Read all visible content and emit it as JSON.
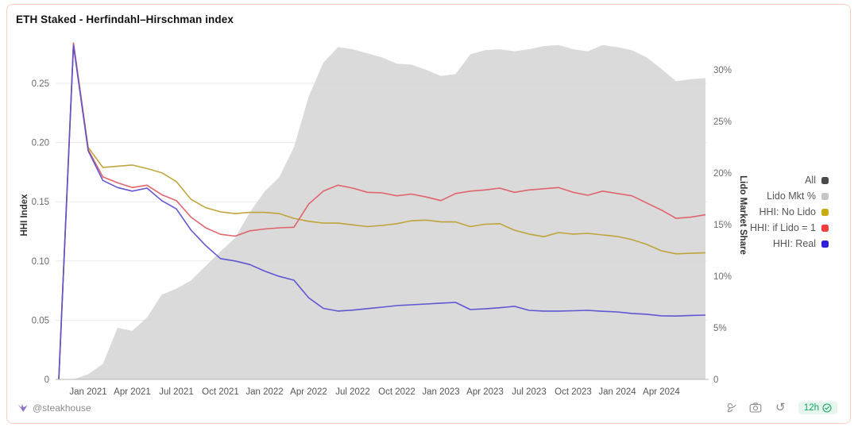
{
  "card": {
    "title": "ETH Staked - Herfindahl–Hirschman index"
  },
  "footer": {
    "credit": "@steakhouse",
    "refresh_glyph": "↺",
    "badge": {
      "text": "12h",
      "color": "#17a563",
      "bg": "#e6f6ee"
    }
  },
  "legend": [
    {
      "label": "All",
      "color": "#4a4a4a"
    },
    {
      "label": "Lido Mkt %",
      "color": "#c6c6c6"
    },
    {
      "label": "HHI: No Lido",
      "color": "#c9ab13"
    },
    {
      "label": "HHI: if Lido = 1",
      "color": "#f23d3d"
    },
    {
      "label": "HHI: Real",
      "color": "#2c20dd"
    }
  ],
  "chart_data": {
    "type": "area+line",
    "title": "ETH Staked - Herfindahl–Hirschman index",
    "x_months": [
      "2020-11",
      "2020-12",
      "2021-01",
      "2021-02",
      "2021-03",
      "2021-04",
      "2021-05",
      "2021-06",
      "2021-07",
      "2021-08",
      "2021-09",
      "2021-10",
      "2021-11",
      "2021-12",
      "2022-01",
      "2022-02",
      "2022-03",
      "2022-04",
      "2022-05",
      "2022-06",
      "2022-07",
      "2022-08",
      "2022-09",
      "2022-10",
      "2022-11",
      "2022-12",
      "2023-01",
      "2023-02",
      "2023-03",
      "2023-04",
      "2023-05",
      "2023-06",
      "2023-07",
      "2023-08",
      "2023-09",
      "2023-10",
      "2023-11",
      "2023-12",
      "2024-01",
      "2024-02",
      "2024-03",
      "2024-04",
      "2024-05",
      "2024-06",
      "2024-07"
    ],
    "x_ticks": [
      {
        "label": "Jan 2021",
        "i": 2
      },
      {
        "label": "Apr 2021",
        "i": 5
      },
      {
        "label": "Jul 2021",
        "i": 8
      },
      {
        "label": "Oct 2021",
        "i": 11
      },
      {
        "label": "Jan 2022",
        "i": 14
      },
      {
        "label": "Apr 2022",
        "i": 17
      },
      {
        "label": "Jul 2022",
        "i": 20
      },
      {
        "label": "Oct 2022",
        "i": 23
      },
      {
        "label": "Jan 2023",
        "i": 26
      },
      {
        "label": "Apr 2023",
        "i": 29
      },
      {
        "label": "Jul 2023",
        "i": 32
      },
      {
        "label": "Oct 2023",
        "i": 35
      },
      {
        "label": "Jan 2024",
        "i": 38
      },
      {
        "label": "Apr 2024",
        "i": 41
      }
    ],
    "left_axis": {
      "label": "HHI Index",
      "ticks": [
        "0",
        "0.05",
        "0.10",
        "0.15",
        "0.20",
        "0.25"
      ],
      "range": [
        0,
        0.285
      ],
      "grid": true
    },
    "right_axis": {
      "label": "Lido Market Share",
      "ticks": [
        "0",
        "5%",
        "10%",
        "15%",
        "20%",
        "25%",
        "30%"
      ],
      "range": [
        0,
        32.5
      ],
      "grid": false
    },
    "legend_position": "right",
    "series": [
      {
        "name": "Lido Mkt %",
        "type": "area",
        "axis": "right",
        "color": "#d5d5d5",
        "values": [
          0,
          0,
          0.5,
          1.5,
          5.0,
          4.7,
          6.0,
          8.2,
          8.8,
          9.6,
          11.0,
          12.4,
          13.7,
          16.2,
          18.2,
          19.6,
          22.5,
          27.4,
          30.7,
          32.2,
          32.0,
          31.6,
          31.2,
          30.6,
          30.5,
          30.0,
          29.4,
          29.6,
          31.5,
          31.9,
          32.0,
          31.8,
          32.0,
          32.3,
          32.4,
          32.0,
          31.8,
          32.4,
          32.2,
          31.9,
          31.2,
          30.1,
          28.9,
          29.1,
          29.2
        ]
      },
      {
        "name": "HHI: No Lido",
        "type": "line",
        "axis": "left",
        "color": "#bda133",
        "values": [
          0,
          0.284,
          0.196,
          0.179,
          0.18,
          0.181,
          0.178,
          0.1745,
          0.167,
          0.152,
          0.145,
          0.1415,
          0.14,
          0.141,
          0.141,
          0.14,
          0.136,
          0.1335,
          0.132,
          0.132,
          0.1305,
          0.129,
          0.13,
          0.1315,
          0.134,
          0.1345,
          0.133,
          0.133,
          0.129,
          0.131,
          0.1315,
          0.126,
          0.1227,
          0.1205,
          0.124,
          0.1227,
          0.1233,
          0.122,
          0.1207,
          0.118,
          0.114,
          0.1086,
          0.106,
          0.1065,
          0.107
        ]
      },
      {
        "name": "HHI: if Lido = 1",
        "type": "line",
        "axis": "left",
        "color": "#e05e66",
        "values": [
          0,
          0.284,
          0.194,
          0.171,
          0.166,
          0.162,
          0.164,
          0.156,
          0.151,
          0.137,
          0.128,
          0.1225,
          0.121,
          0.1255,
          0.127,
          0.128,
          0.1285,
          0.148,
          0.159,
          0.164,
          0.1615,
          0.158,
          0.1575,
          0.155,
          0.1565,
          0.154,
          0.151,
          0.157,
          0.159,
          0.16,
          0.1615,
          0.158,
          0.16,
          0.161,
          0.162,
          0.158,
          0.1555,
          0.159,
          0.157,
          0.155,
          0.149,
          0.143,
          0.136,
          0.137,
          0.139
        ]
      },
      {
        "name": "HHI: Real",
        "type": "line",
        "axis": "left",
        "color": "#5a4fd2",
        "values": [
          0,
          0.282,
          0.193,
          0.168,
          0.162,
          0.159,
          0.1615,
          0.151,
          0.144,
          0.126,
          0.113,
          0.102,
          0.1,
          0.097,
          0.0915,
          0.087,
          0.0838,
          0.069,
          0.06,
          0.0577,
          0.0585,
          0.0598,
          0.061,
          0.0623,
          0.063,
          0.0637,
          0.0644,
          0.065,
          0.059,
          0.0596,
          0.0605,
          0.0617,
          0.0583,
          0.0577,
          0.0577,
          0.058,
          0.0583,
          0.0575,
          0.057,
          0.0557,
          0.055,
          0.0537,
          0.0535,
          0.054,
          0.0543
        ]
      }
    ]
  }
}
